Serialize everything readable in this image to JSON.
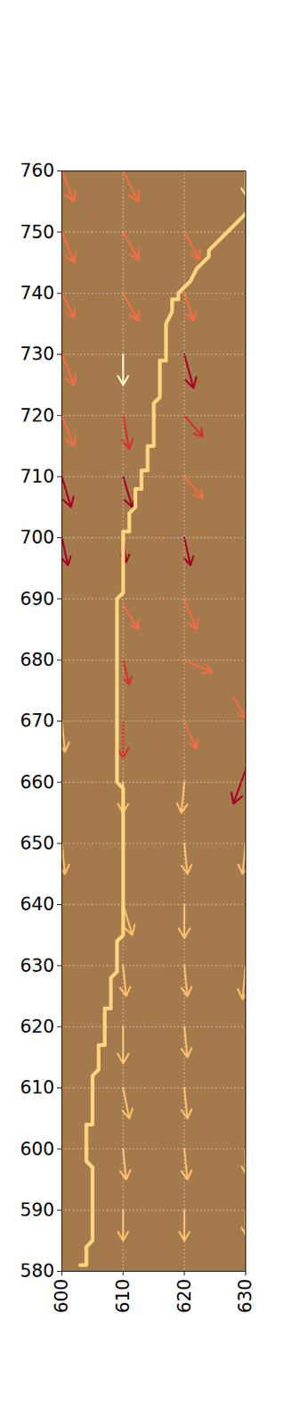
{
  "chart_data": {
    "type": "quiver",
    "xlim": [
      600,
      630
    ],
    "xticks": [
      600,
      610,
      620,
      630
    ],
    "ylim": [
      580,
      760
    ],
    "yticks": [
      580,
      590,
      600,
      610,
      620,
      630,
      640,
      650,
      660,
      670,
      680,
      690,
      700,
      710,
      720,
      730,
      740,
      750,
      760
    ],
    "grid": true,
    "path": {
      "color": "#ffd37f",
      "x": [
        603,
        604,
        604,
        605,
        605,
        604,
        604,
        605,
        605,
        606,
        606,
        607,
        607,
        608,
        608,
        609,
        609,
        610,
        610,
        609,
        609,
        610,
        610,
        611,
        611,
        612,
        612,
        613,
        613,
        614,
        614,
        615,
        615,
        616,
        616,
        617,
        617,
        618,
        618,
        619,
        619,
        620,
        621,
        622,
        623,
        624,
        624,
        625,
        626,
        627,
        628,
        629,
        630
      ],
      "y": [
        581,
        581,
        584,
        585,
        597,
        598,
        604,
        604,
        612,
        613,
        617,
        617,
        623,
        623,
        628,
        629,
        634,
        635,
        659,
        660,
        690,
        691,
        701,
        701,
        704,
        705,
        708,
        708,
        711,
        711,
        715,
        715,
        722,
        723,
        729,
        729,
        735,
        737,
        739,
        739,
        740,
        741,
        742,
        744,
        745,
        746,
        747,
        748,
        749,
        750,
        751,
        752,
        753
      ]
    },
    "arrows": {
      "x": [
        600,
        610,
        630,
        600,
        610,
        620,
        600,
        610,
        620,
        600,
        610,
        620,
        600,
        610,
        620,
        600,
        610,
        620,
        600,
        610,
        620,
        610,
        620,
        610,
        620,
        600,
        610,
        620,
        628,
        630,
        610,
        620,
        600,
        620,
        630,
        610,
        620,
        610,
        620,
        630,
        610,
        620,
        610,
        620,
        610,
        620,
        630,
        610,
        620,
        630
      ],
      "y": [
        760,
        760,
        760,
        750,
        750,
        750,
        740,
        740,
        740,
        730,
        730,
        730,
        720,
        720,
        720,
        710,
        710,
        710,
        700,
        700,
        700,
        689,
        690,
        680,
        680,
        670,
        670,
        670,
        674,
        662,
        660,
        660,
        650,
        650,
        650,
        640,
        640,
        630,
        630,
        630,
        620,
        620,
        610,
        610,
        600,
        600,
        600,
        590,
        590,
        590
      ],
      "x2": [
        602,
        612.5,
        630,
        602,
        612.5,
        622.5,
        602,
        612.5,
        621.5,
        602,
        610,
        621.5,
        602,
        611,
        623,
        601.5,
        611.5,
        623,
        601,
        610.5,
        621,
        612.5,
        622,
        611,
        624.5,
        600.5,
        610,
        622,
        630,
        628,
        610,
        619.5,
        600.5,
        620.5,
        629.5,
        611.5,
        620,
        610.5,
        620.5,
        629.5,
        610,
        620.5,
        611,
        620.5,
        610.5,
        620.5,
        630,
        610,
        620,
        630
      ],
      "y2": [
        755,
        755,
        756,
        745,
        745.5,
        745.5,
        736,
        735.5,
        735.5,
        725,
        725,
        724.5,
        715,
        714.5,
        716.5,
        705,
        705,
        706.5,
        695.5,
        696,
        695.5,
        685,
        685,
        676,
        678,
        665,
        664,
        665.5,
        670.5,
        656.5,
        655,
        655,
        645,
        645,
        645,
        635,
        634.5,
        625,
        625,
        624.5,
        614,
        615,
        605,
        605,
        595,
        595,
        596,
        585,
        585,
        586
      ],
      "colors": [
        "#f46d43",
        "#f46d43",
        "#fee08b",
        "#f46d43",
        "#f46d43",
        "#f46d43",
        "#f46d43",
        "#f46d43",
        "#f46d43",
        "#f46d43",
        "#fff3c4",
        "#a50026",
        "#f46d43",
        "#d73027",
        "#d73027",
        "#a50026",
        "#a50026",
        "#f46d43",
        "#a50026",
        "#a50026",
        "#a50026",
        "#f46d43",
        "#f46d43",
        "#d73027",
        "#f46d43",
        "#fdbe6a",
        "#d73027",
        "#f46d43",
        "#f46d43",
        "#a50026",
        "#fdbe6a",
        "#fdbe6a",
        "#fdbe6a",
        "#fdbe6a",
        "#fdbe6a",
        "#fdbe6a",
        "#fdbe6a",
        "#fdbe6a",
        "#fdbe6a",
        "#fdbe6a",
        "#fdbe6a",
        "#fdbe6a",
        "#fdbe6a",
        "#fdbe6a",
        "#fdbe6a",
        "#fdbe6a",
        "#fdbe6a",
        "#fdbe6a",
        "#fdbe6a",
        "#fdbe6a"
      ]
    }
  }
}
